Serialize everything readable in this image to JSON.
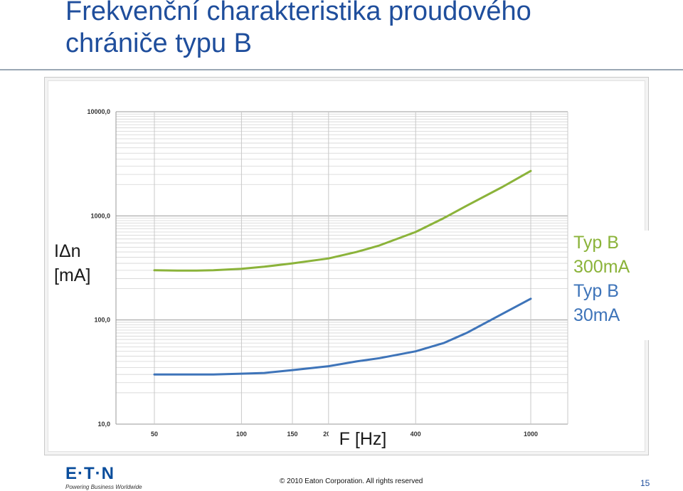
{
  "slide": {
    "title_line1": "Frekvenční charakteristika proudového",
    "title_line2": "chrániče typu B",
    "footer_copyright": "© 2010 Eaton Corporation. All rights reserved",
    "page_number": "15",
    "logo_text": "E·T·N",
    "logo_tagline": "Powering Business Worldwide"
  },
  "colors": {
    "title": "#1f4e9c",
    "series_300mA": "#8bb33a",
    "series_30mA": "#3e74b9"
  },
  "chart_data": {
    "type": "line",
    "ylabel_line1": "IΔn",
    "ylabel_line2": "[mA]",
    "xlabel": "F [Hz]",
    "y_scale": "log",
    "x_scale": "log",
    "ylim": [
      10,
      10000
    ],
    "xlim": [
      50,
      1000
    ],
    "y_ticks": [
      10,
      100,
      1000,
      10000
    ],
    "y_tick_labels": [
      "10,0",
      "100,0",
      "1000,0",
      "10000,0"
    ],
    "x_ticks": [
      50,
      100,
      150,
      200,
      400,
      1000
    ],
    "x_tick_labels": [
      "50",
      "100",
      "150",
      "200",
      "400",
      "1000"
    ],
    "x": [
      50,
      60,
      70,
      80,
      100,
      120,
      150,
      200,
      250,
      300,
      400,
      500,
      600,
      800,
      1000
    ],
    "series": [
      {
        "name_line1": "Typ B",
        "name_line2": "300mA",
        "color": "#8bb33a",
        "values": [
          300,
          298,
          298,
          300,
          310,
          325,
          350,
          390,
          450,
          520,
          700,
          950,
          1250,
          1900,
          2700
        ]
      },
      {
        "name_line1": "Typ B",
        "name_line2": "30mA",
        "color": "#3e74b9",
        "values": [
          30,
          30,
          30,
          30,
          30.5,
          31,
          33,
          36,
          40,
          43,
          50,
          60,
          75,
          115,
          160
        ]
      }
    ],
    "legend_placement": "right",
    "grid": true
  }
}
